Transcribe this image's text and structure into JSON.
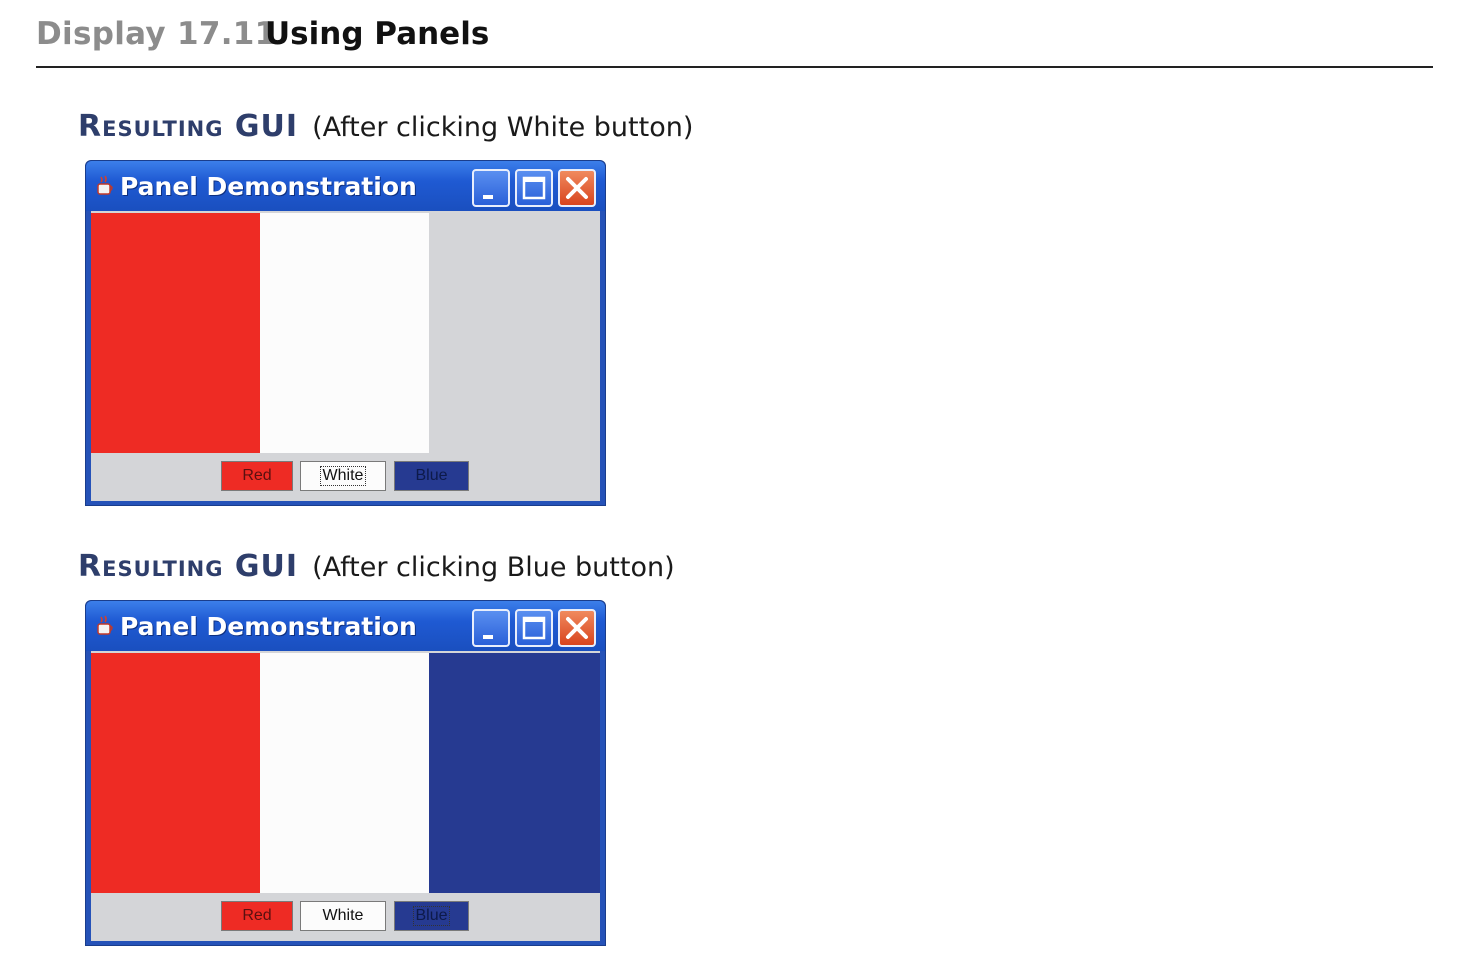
{
  "header": {
    "display_label": "Display 17.11",
    "title": "Using Panels"
  },
  "colors": {
    "red": "#ee2b24",
    "white": "#fcfcfc",
    "blue": "#263a91",
    "gray": "#d4d5d8",
    "caption_heading": "#2e3e6b"
  },
  "sections": [
    {
      "heading": "Resulting GUI",
      "note": "(After clicking White button)",
      "window": {
        "title": "Panel Demonstration",
        "panels": [
          "red",
          "white",
          "gray"
        ],
        "buttons": [
          {
            "label": "Red",
            "color": "red"
          },
          {
            "label": "White",
            "color": "white",
            "focused": true
          },
          {
            "label": "Blue",
            "color": "blue"
          }
        ]
      }
    },
    {
      "heading": "Resulting GUI",
      "note": "(After clicking Blue button)",
      "window": {
        "title": "Panel Demonstration",
        "panels": [
          "red",
          "white",
          "blue"
        ],
        "buttons": [
          {
            "label": "Red",
            "color": "red"
          },
          {
            "label": "White",
            "color": "white"
          },
          {
            "label": "Blue",
            "color": "blue",
            "focused": true
          }
        ]
      }
    }
  ],
  "icons": {
    "app": "java-cup-icon",
    "minimize": "minimize-icon",
    "maximize": "maximize-icon",
    "close": "close-icon"
  }
}
